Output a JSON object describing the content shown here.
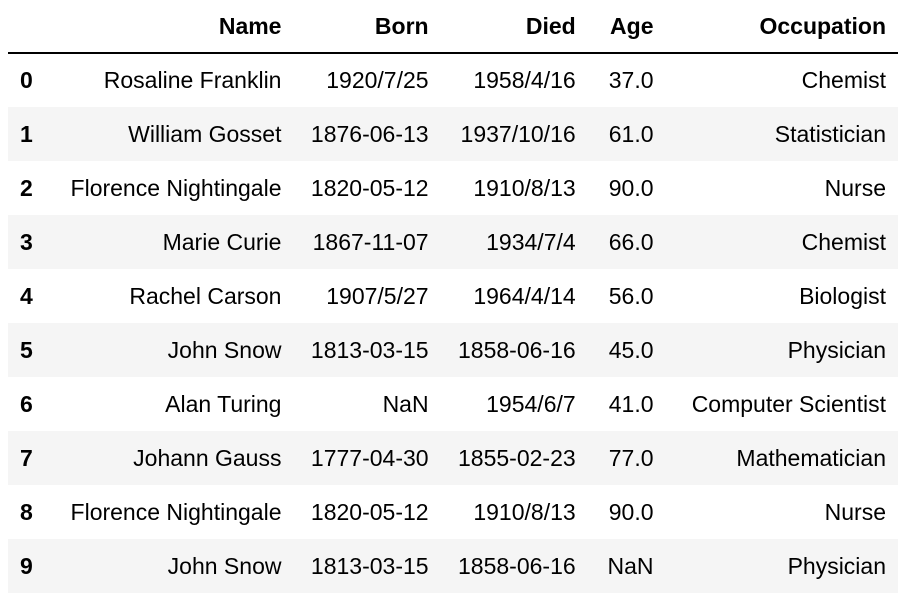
{
  "table": {
    "headers": [
      "",
      "Name",
      "Born",
      "Died",
      "Age",
      "Occupation"
    ],
    "rows": [
      {
        "index": "0",
        "name": "Rosaline Franklin",
        "born": "1920/7/25",
        "died": "1958/4/16",
        "age": "37.0",
        "occupation": "Chemist"
      },
      {
        "index": "1",
        "name": "William Gosset",
        "born": "1876-06-13",
        "died": "1937/10/16",
        "age": "61.0",
        "occupation": "Statistician"
      },
      {
        "index": "2",
        "name": "Florence Nightingale",
        "born": "1820-05-12",
        "died": "1910/8/13",
        "age": "90.0",
        "occupation": "Nurse"
      },
      {
        "index": "3",
        "name": "Marie Curie",
        "born": "1867-11-07",
        "died": "1934/7/4",
        "age": "66.0",
        "occupation": "Chemist"
      },
      {
        "index": "4",
        "name": "Rachel Carson",
        "born": "1907/5/27",
        "died": "1964/4/14",
        "age": "56.0",
        "occupation": "Biologist"
      },
      {
        "index": "5",
        "name": "John Snow",
        "born": "1813-03-15",
        "died": "1858-06-16",
        "age": "45.0",
        "occupation": "Physician"
      },
      {
        "index": "6",
        "name": "Alan Turing",
        "born": "NaN",
        "died": "1954/6/7",
        "age": "41.0",
        "occupation": "Computer Scientist"
      },
      {
        "index": "7",
        "name": "Johann Gauss",
        "born": "1777-04-30",
        "died": "1855-02-23",
        "age": "77.0",
        "occupation": "Mathematician"
      },
      {
        "index": "8",
        "name": "Florence Nightingale",
        "born": "1820-05-12",
        "died": "1910/8/13",
        "age": "90.0",
        "occupation": "Nurse"
      },
      {
        "index": "9",
        "name": "John Snow",
        "born": "1813-03-15",
        "died": "1858-06-16",
        "age": "NaN",
        "occupation": "Physician"
      }
    ]
  },
  "colors": {
    "stripe": "#f5f5f5",
    "text": "#000000",
    "background": "#ffffff"
  }
}
